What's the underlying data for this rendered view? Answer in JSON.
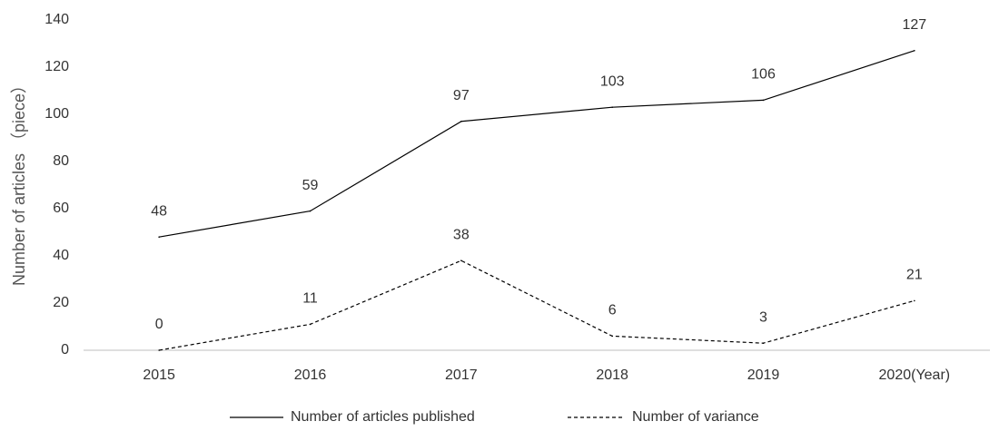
{
  "chart_data": {
    "type": "line",
    "categories": [
      "2015",
      "2016",
      "2017",
      "2018",
      "2019",
      "2020(Year)"
    ],
    "series": [
      {
        "name": "Number of articles published",
        "values": [
          48,
          59,
          97,
          103,
          106,
          127
        ],
        "line_style": "solid",
        "color": "#000000"
      },
      {
        "name": "Number of variance",
        "values": [
          0,
          11,
          38,
          6,
          3,
          21
        ],
        "line_style": "dashed",
        "color": "#000000"
      }
    ],
    "ylabel": "Number of articles （piece）",
    "xlabel": "",
    "title": "",
    "ylim": [
      0,
      140
    ],
    "yticks": [
      0,
      20,
      40,
      60,
      80,
      100,
      120,
      140
    ],
    "grid": false,
    "legend_position": "bottom"
  }
}
